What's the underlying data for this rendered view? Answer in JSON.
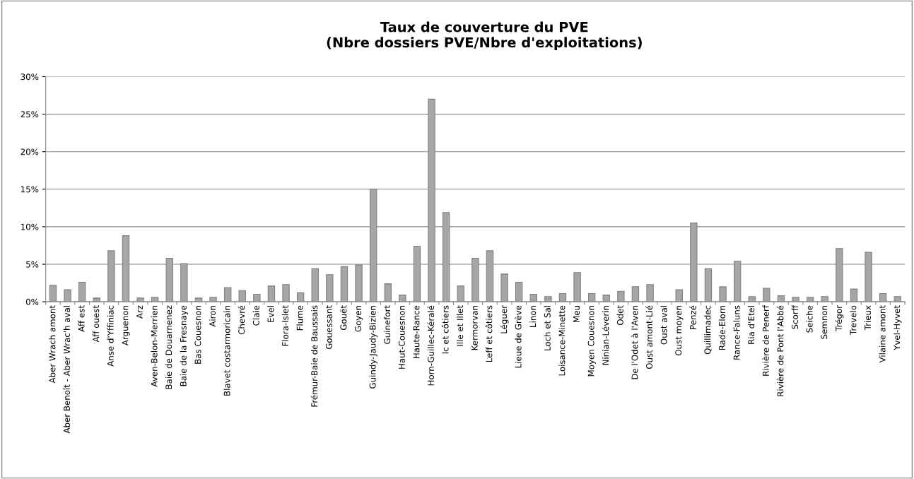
{
  "chart_data": {
    "type": "bar",
    "title": "Taux de couverture du PVE\n(Nbre dossiers PVE/Nbre d'exploitations)",
    "categories": [
      "Aber Wrach amont",
      "Aber Benoît - Aber Wrac'h aval",
      "Aff est",
      "Aff ouest",
      "Anse d'Yffiniac",
      "Arguenon",
      "Arz",
      "Aven-Belon-Merrien",
      "Baie de Douarnenez",
      "Baie de la Fresnaye",
      "Bas Couesnon",
      "Airon",
      "Blavet costarmoricain",
      "Chevré",
      "Claie",
      "Evel",
      "Flora-Islet",
      "Flume",
      "Frémur-Baie de Baussais",
      "Gouessant",
      "Gouët",
      "Goyen",
      "Guindy-Jaudy-Bizien",
      "Guinefort",
      "Haut-Couesnon",
      "Haute-Rance",
      "Horn-Guillec-Kéralé",
      "Ic et côtiers",
      "Ille et Illet",
      "Kermorvan",
      "Leff et côtiers",
      "Léguer",
      "Lieue de Grève",
      "Linon",
      "Loch et Sal",
      "Loisance-Minette",
      "Meu",
      "Moyen Couesnon",
      "Ninian-Léverin",
      "Odet",
      "De l'Odet à l'Aven",
      "Oust amont-Lié",
      "Oust aval",
      "Oust moyen",
      "Penzé",
      "Quillimadec",
      "Rade-Elorn",
      "Rance-Faluns",
      "Ria d'Etel",
      "Rivière de Penerf",
      "Rivière de Pont l'Abbé",
      "Scorff",
      "Seiche",
      "Semnon",
      "Trégor",
      "Trevelo",
      "Trieux",
      "Vilaine amont",
      "Yvel-Hyvet"
    ],
    "values": [
      2.2,
      1.6,
      2.6,
      0.5,
      6.8,
      8.8,
      0.5,
      0.6,
      5.8,
      5.1,
      0.5,
      0.6,
      1.9,
      1.5,
      1.0,
      2.1,
      2.3,
      1.2,
      4.4,
      3.6,
      4.7,
      4.9,
      15.0,
      2.4,
      0.9,
      7.4,
      27.0,
      11.9,
      2.1,
      5.8,
      6.8,
      3.7,
      2.6,
      1.0,
      0.7,
      1.1,
      3.9,
      1.1,
      0.9,
      1.4,
      2.0,
      2.3,
      0,
      1.6,
      10.5,
      4.4,
      2.0,
      5.4,
      0.7,
      1.8,
      0.8,
      0.6,
      0.6,
      0.7,
      7.1,
      1.7,
      6.6,
      1.1,
      0.7
    ],
    "color": "#a6a6a6",
    "ylim": [
      0,
      30
    ],
    "yticks": [
      {
        "value": 0,
        "label": "0%"
      },
      {
        "value": 5,
        "label": "5%"
      },
      {
        "value": 10,
        "label": "10%"
      },
      {
        "value": 15,
        "label": "15%"
      },
      {
        "value": 20,
        "label": "20%"
      },
      {
        "value": 25,
        "label": "25%"
      },
      {
        "value": 30,
        "label": "30%"
      }
    ],
    "grid": "y",
    "legend": false
  }
}
